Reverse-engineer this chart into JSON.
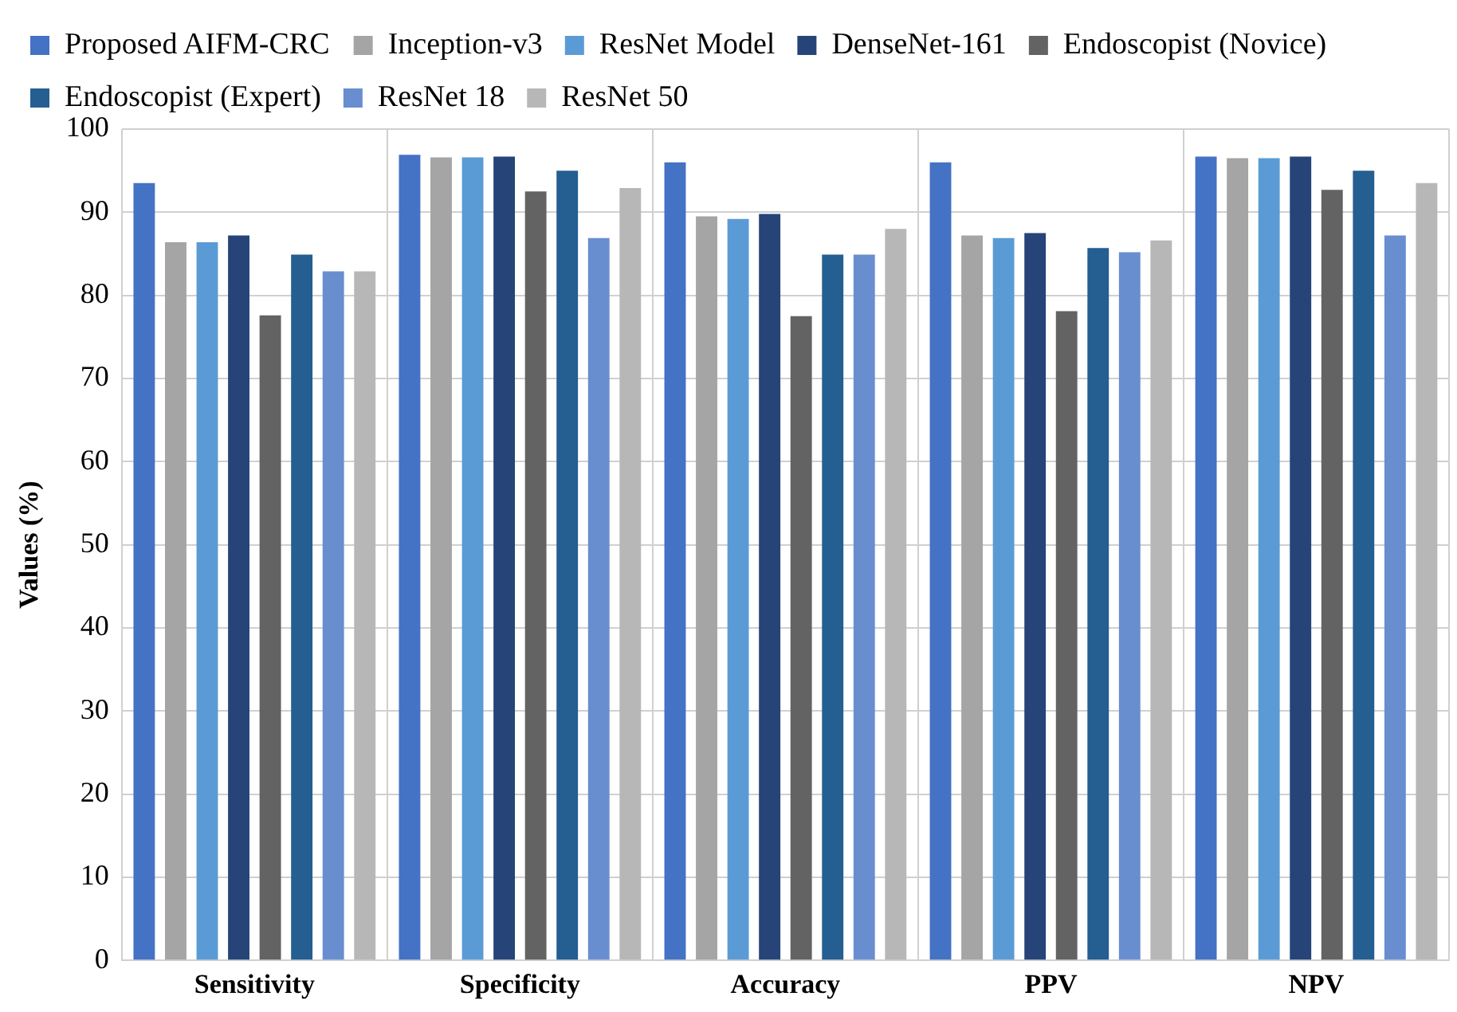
{
  "chart_data": {
    "type": "bar",
    "ylabel": "Values (%)",
    "categories": [
      "Sensitivity",
      "Specificity",
      "Accuracy",
      "PPV",
      "NPV"
    ],
    "series": [
      {
        "name": "Proposed AIFM-CRC",
        "color": "#4472c4",
        "values": [
          93.5,
          96.9,
          96.0,
          96.0,
          96.7
        ]
      },
      {
        "name": "Inception-v3",
        "color": "#a5a5a5",
        "values": [
          86.4,
          96.6,
          89.5,
          87.2,
          96.5
        ]
      },
      {
        "name": "ResNet Model",
        "color": "#5b9bd5",
        "values": [
          86.4,
          96.6,
          89.2,
          86.9,
          96.5
        ]
      },
      {
        "name": "DenseNet-161",
        "color": "#264478",
        "values": [
          87.2,
          96.7,
          89.8,
          87.5,
          96.7
        ]
      },
      {
        "name": "Endoscopist (Novice)",
        "color": "#636363",
        "values": [
          77.6,
          92.5,
          77.5,
          78.1,
          92.7
        ]
      },
      {
        "name": "Endoscopist (Expert)",
        "color": "#255e91",
        "values": [
          84.9,
          95.0,
          84.9,
          85.7,
          95.0
        ]
      },
      {
        "name": "ResNet 18",
        "color": "#698ed0",
        "values": [
          82.9,
          86.9,
          84.9,
          85.2,
          87.2
        ]
      },
      {
        "name": "ResNet 50",
        "color": "#b7b7b7",
        "values": [
          82.9,
          92.9,
          88.0,
          86.6,
          93.5
        ]
      }
    ],
    "ylim": [
      0,
      100
    ],
    "yticks": [
      0,
      10,
      20,
      30,
      40,
      50,
      60,
      70,
      80,
      90,
      100
    ],
    "grid": true,
    "legend": "top"
  }
}
